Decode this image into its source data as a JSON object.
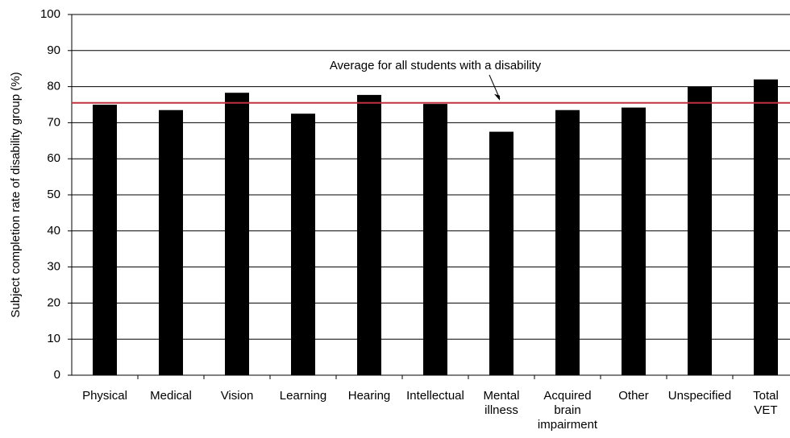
{
  "chart_data": {
    "type": "bar",
    "y_axis_label": "Subject completion rate of disability group (%)",
    "categories": [
      [
        "Physical"
      ],
      [
        "Medical"
      ],
      [
        "Vision"
      ],
      [
        "Learning"
      ],
      [
        "Hearing"
      ],
      [
        "Intellectual"
      ],
      [
        "Mental",
        "illness"
      ],
      [
        "Acquired",
        "brain",
        "impairment"
      ],
      [
        "Other"
      ],
      [
        "Unspecified"
      ],
      [
        "Total",
        "VET"
      ]
    ],
    "values": [
      75,
      73.5,
      78.3,
      72.5,
      77.7,
      75.2,
      67.5,
      73.5,
      74.2,
      80,
      82
    ],
    "color": "#000000",
    "reference_line": {
      "value": 75.5,
      "label": "Average for all students with a disability",
      "color": "#c0323c"
    },
    "ylim": [
      0,
      100
    ],
    "yticks": [
      0,
      10,
      20,
      30,
      40,
      50,
      60,
      70,
      80,
      90,
      100
    ],
    "grid": true
  }
}
